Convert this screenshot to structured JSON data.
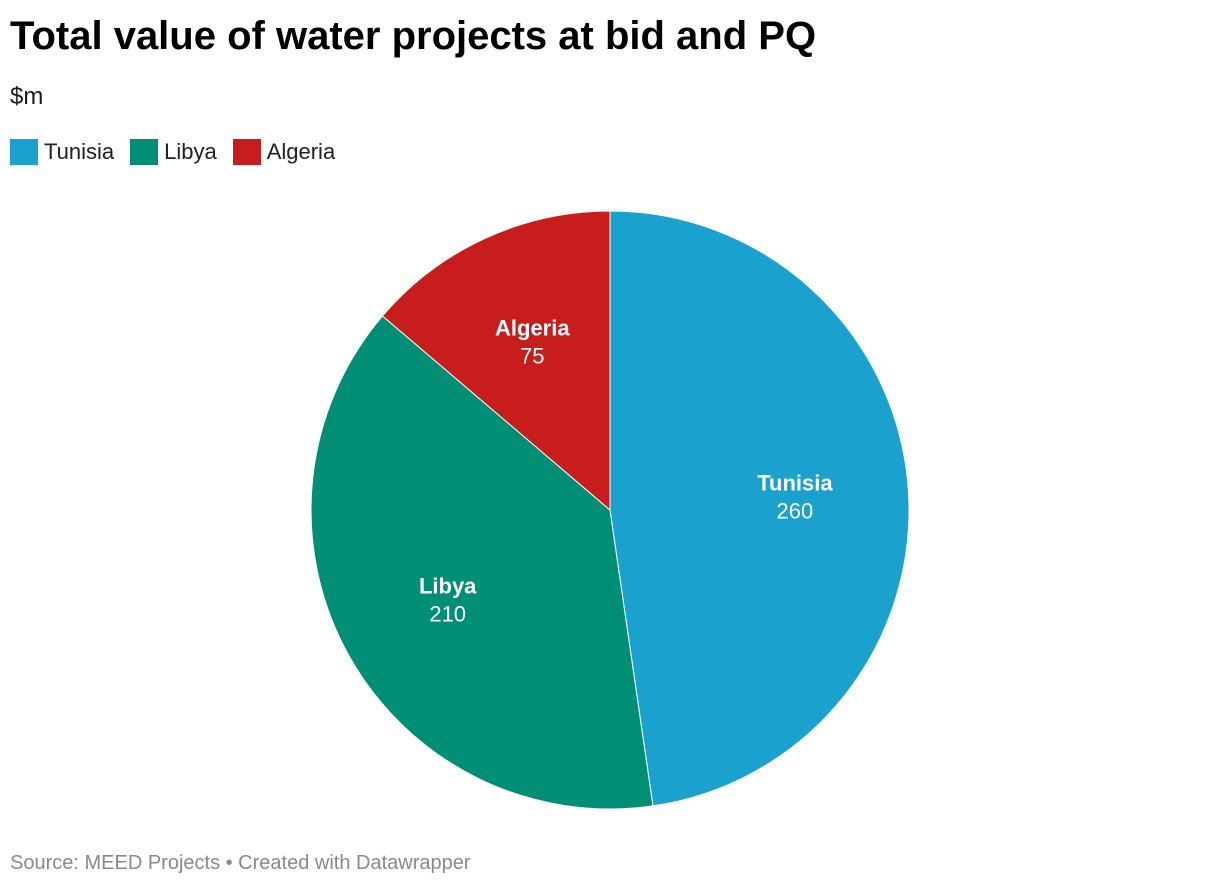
{
  "header": {
    "title": "Total value of water projects at bid and PQ",
    "subtitle": "$m"
  },
  "legend": [
    {
      "label": "Tunisia",
      "color": "#1aa1cd"
    },
    {
      "label": "Libya",
      "color": "#008f74"
    },
    {
      "label": "Algeria",
      "color": "#c71e1d"
    }
  ],
  "chart_data": {
    "type": "pie",
    "title": "Total value of water projects at bid and PQ",
    "subtitle": "$m",
    "categories": [
      "Tunisia",
      "Libya",
      "Algeria"
    ],
    "values": [
      260,
      210,
      75
    ],
    "colors": [
      "#1aa1cd",
      "#008f74",
      "#c71e1d"
    ],
    "legend_position": "top-left"
  },
  "footer": {
    "source": "Source: MEED Projects • Created with Datawrapper"
  }
}
